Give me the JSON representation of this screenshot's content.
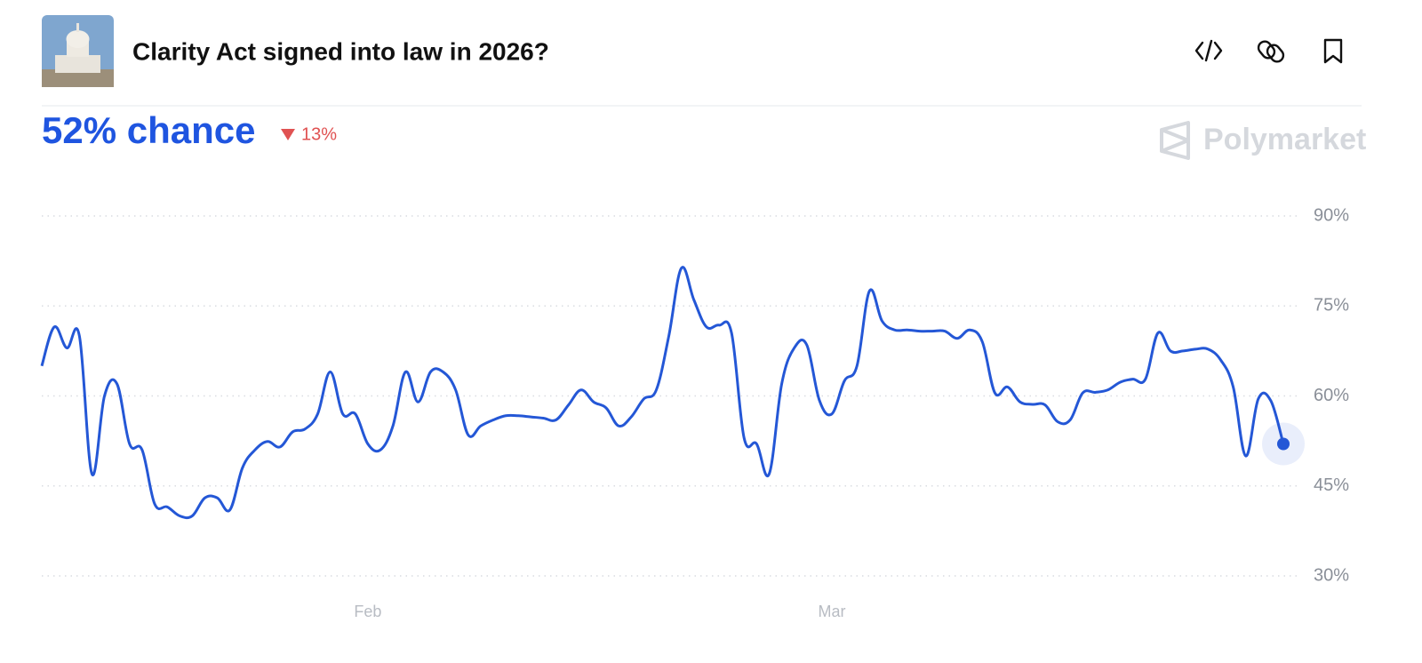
{
  "chart_data": {
    "type": "line",
    "title": "Clarity Act signed into law in 2026?",
    "headline": "52% chance",
    "change": "13%",
    "brand": "Polymarket",
    "color": "#2457d6",
    "grid": true,
    "ylim": [
      30,
      90
    ],
    "yticks": [
      {
        "value": 90,
        "label": "90%"
      },
      {
        "value": 75,
        "label": "75%"
      },
      {
        "value": 60,
        "label": "60%"
      },
      {
        "value": 45,
        "label": "45%"
      },
      {
        "value": 30,
        "label": "30%"
      }
    ],
    "categories": [
      null,
      null,
      null,
      null,
      null,
      null,
      null,
      null,
      null,
      null,
      null,
      null,
      null,
      null,
      null,
      null,
      null,
      null,
      null,
      null,
      null,
      null,
      null,
      null,
      null,
      null,
      "Feb",
      null,
      null,
      null,
      null,
      null,
      null,
      null,
      null,
      null,
      null,
      null,
      null,
      null,
      null,
      null,
      null,
      null,
      null,
      null,
      null,
      null,
      null,
      null,
      null,
      null,
      null,
      null,
      null,
      null,
      null,
      null,
      null,
      null,
      null,
      null,
      null,
      "Mar",
      null,
      null,
      null,
      null,
      null,
      null,
      null,
      null,
      null,
      null,
      null,
      null,
      null,
      null,
      null,
      null,
      null,
      null,
      null,
      null,
      null,
      null,
      null,
      null,
      null,
      null,
      null,
      null,
      null,
      null,
      null,
      null,
      null,
      null,
      null,
      null
    ],
    "values": [
      65,
      71.5,
      68,
      70,
      47,
      60,
      62,
      52,
      51,
      42,
      41.5,
      40,
      40,
      43,
      43,
      41,
      48,
      51,
      52.4,
      51.5,
      54,
      54.5,
      57,
      64,
      57,
      57,
      52,
      51,
      55,
      64,
      59,
      64,
      64,
      61,
      53.5,
      55,
      56,
      56.7,
      56.7,
      56.5,
      56.3,
      56,
      58.5,
      61,
      59,
      58,
      55,
      56.5,
      59.5,
      61,
      70,
      81.3,
      76,
      71.5,
      71.8,
      70.5,
      53,
      52,
      47,
      62,
      68,
      68.5,
      59.3,
      57,
      62.5,
      65,
      77.5,
      72.5,
      71,
      71,
      70.8,
      70.8,
      70.8,
      69.6,
      71,
      69,
      60.5,
      61.5,
      59,
      58.6,
      58.5,
      55.7,
      56,
      60.5,
      60.6,
      61,
      62.3,
      62.8,
      62.8,
      70.5,
      67.5,
      67.5,
      67.8,
      67.8,
      66,
      61.5,
      50,
      59.5,
      59.2,
      52
    ]
  }
}
